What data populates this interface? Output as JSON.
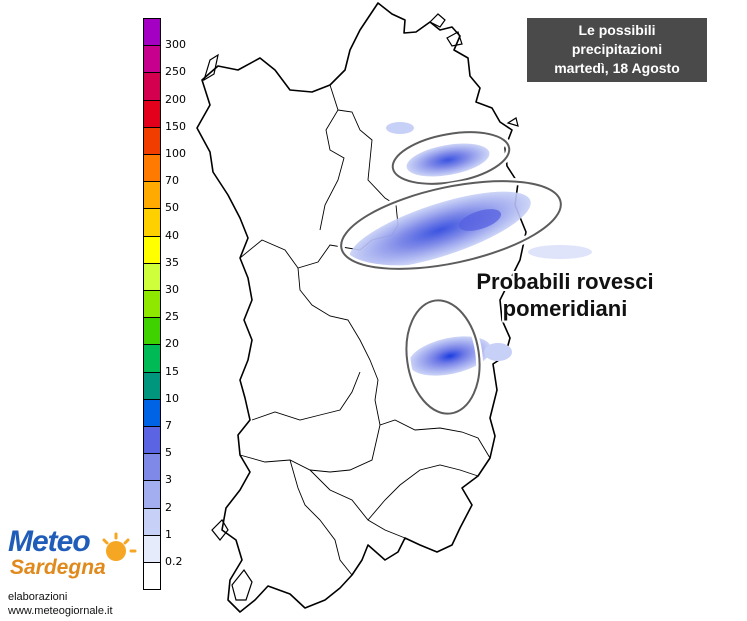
{
  "title": {
    "line1": "Le possibili",
    "line2": "precipitazioni",
    "line3": "martedì, 18 Agosto"
  },
  "annotation": {
    "line1": "Probabili rovesci",
    "line2": "pomeridiani"
  },
  "legend": {
    "labels": [
      "300",
      "250",
      "200",
      "150",
      "100",
      "70",
      "50",
      "40",
      "35",
      "30",
      "25",
      "20",
      "15",
      "10",
      "7",
      "5",
      "3",
      "2",
      "1",
      "0.2"
    ],
    "colors": [
      "#a300c4",
      "#c8008e",
      "#d4004f",
      "#e3001c",
      "#f23d00",
      "#ff7a00",
      "#ffaa00",
      "#ffd000",
      "#ffff00",
      "#cfff3a",
      "#8fe800",
      "#3fd200",
      "#00bb55",
      "#00967e",
      "#0063e6",
      "#5b65e3",
      "#7f8ae8",
      "#a2aef0",
      "#c7d0f6",
      "#e6ebfb",
      "#ffffff"
    ]
  },
  "logo": {
    "word1": "Meteo",
    "word2": "Sardegna"
  },
  "credit": {
    "line1": "elaborazioni",
    "line2": "www.meteogiornale.it"
  }
}
